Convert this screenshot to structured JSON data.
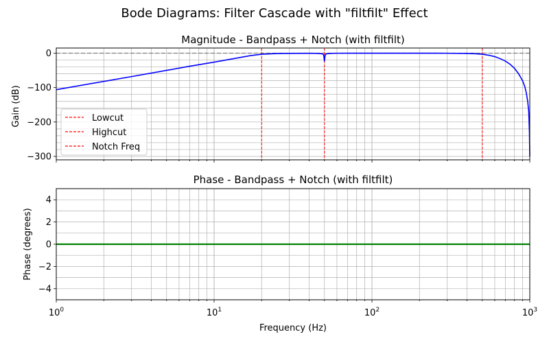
{
  "figure": {
    "title": "Bode Diagrams: Filter Cascade with \"filtfilt\" Effect"
  },
  "colors": {
    "magnitude_line": "#0000ff",
    "phase_line": "#008000",
    "cutoff_lines": "#ff0000",
    "zero_ref_line": "#808080",
    "grid": "#b0b0b0"
  },
  "chart_data": [
    {
      "type": "line",
      "title": "Magnitude - Bandpass + Notch (with filtfilt)",
      "xlabel": "",
      "ylabel": "Gain (dB)",
      "xscale": "log",
      "xlim": [
        1,
        1000
      ],
      "ylim": [
        -310,
        15
      ],
      "yticks": [
        0,
        -100,
        -200,
        -300
      ],
      "ytick_labels": [
        "0",
        "−100",
        "−200",
        "−300"
      ],
      "grid": "both-major-minor",
      "legend_placement": "lower-left",
      "legend": [
        "Lowcut",
        "Highcut",
        "Notch Freq"
      ],
      "reference_line": {
        "y": 0,
        "style": "dashed"
      },
      "vertical_lines": [
        {
          "x": 20,
          "label": "Lowcut"
        },
        {
          "x": 500,
          "label": "Highcut"
        },
        {
          "x": 50,
          "label": "Notch Freq"
        }
      ],
      "series": [
        {
          "x": [
            1,
            2,
            3,
            5,
            7,
            10,
            14,
            17,
            20,
            25,
            30,
            40,
            45,
            48,
            49,
            49.5,
            50,
            50.5,
            51,
            52,
            55,
            60,
            80,
            100,
            150,
            200,
            300,
            400,
            450,
            500,
            550,
            600,
            650,
            700,
            750,
            800,
            850,
            900,
            930,
            950,
            970,
            985,
            995,
            1000
          ],
          "y": [
            -106,
            -82,
            -68,
            -50,
            -38,
            -26,
            -14,
            -7,
            -3,
            -1,
            -0.5,
            -0.3,
            -0.6,
            -1.5,
            -3,
            -6,
            -24,
            -6,
            -3,
            -1.5,
            -0.5,
            -0.2,
            0,
            0,
            0,
            0,
            -0.2,
            -0.8,
            -1.5,
            -3,
            -6,
            -10,
            -16,
            -23,
            -32,
            -44,
            -60,
            -80,
            -97,
            -115,
            -140,
            -170,
            -230,
            -300
          ]
        }
      ]
    },
    {
      "type": "line",
      "title": "Phase - Bandpass + Notch (with filtfilt)",
      "xlabel": "Frequency (Hz)",
      "ylabel": "Phase (degrees)",
      "xscale": "log",
      "xlim": [
        1,
        1000
      ],
      "ylim": [
        -5,
        5
      ],
      "yticks": [
        4,
        2,
        0,
        -2,
        -4
      ],
      "ytick_labels": [
        "4",
        "2",
        "0",
        "−2",
        "−4"
      ],
      "xtick_labels": [
        {
          "base": "10",
          "exp": "0"
        },
        {
          "base": "10",
          "exp": "1"
        },
        {
          "base": "10",
          "exp": "2"
        },
        {
          "base": "10",
          "exp": "3"
        }
      ],
      "grid": "both-major-minor",
      "series": [
        {
          "x": [
            1,
            1000
          ],
          "y": [
            0,
            0
          ]
        }
      ]
    }
  ]
}
